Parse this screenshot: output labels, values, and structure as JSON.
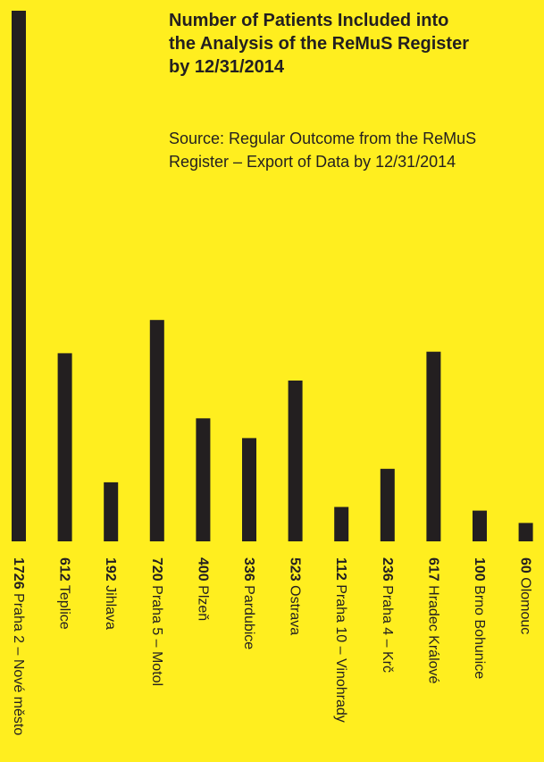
{
  "chart_data": {
    "type": "bar",
    "title": "Number of Patients Included into\nthe Analysis of the ReMuS Register\nby 12/31/2014",
    "subtitle": "Source: Regular Outcome from the ReMuS\nRegister – Export of Data by 12/31/2014",
    "categories": [
      "Praha 2 – Nové město",
      "Teplice",
      "Jihlava",
      "Praha 5 – Motol",
      "Plzeň",
      "Pardubice",
      "Ostrava",
      "Praha 10 – Vinohrady",
      "Praha 4 – Krč",
      "Hradec Králové",
      "Brno Bohunice",
      "Olomouc"
    ],
    "values": [
      1726,
      612,
      192,
      720,
      400,
      336,
      523,
      112,
      236,
      617,
      100,
      60
    ],
    "value_labels": [
      "1726",
      "612",
      "192",
      "720",
      "400",
      "336",
      "523",
      "112",
      "236",
      "617",
      "100",
      "60"
    ],
    "grid": false,
    "legend": "none",
    "colors": {
      "background": "#FFEE1F",
      "bar": "#231F20",
      "text": "#231F20"
    }
  }
}
